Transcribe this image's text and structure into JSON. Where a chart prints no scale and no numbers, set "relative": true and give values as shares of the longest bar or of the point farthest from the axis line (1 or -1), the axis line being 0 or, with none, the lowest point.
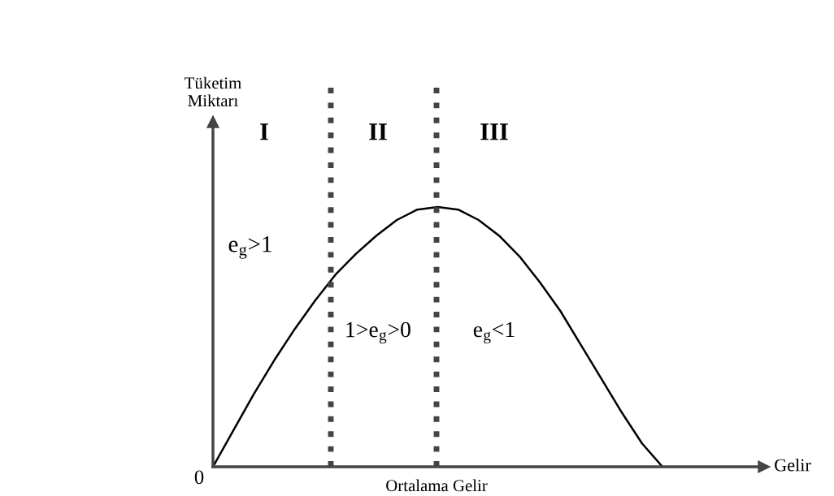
{
  "chart_data": {
    "type": "line",
    "relative": true,
    "categories": [
      null,
      null,
      null,
      null,
      null,
      null,
      null,
      null,
      null,
      null,
      null,
      null,
      null,
      null,
      null,
      null,
      null,
      null,
      null,
      null,
      null,
      null,
      null
    ],
    "series": [
      {
        "color": "#000000",
        "values": [
          0,
          0.14,
          0.28,
          0.41,
          0.53,
          0.64,
          0.74,
          0.82,
          0.89,
          0.95,
          0.99,
          1.0,
          0.99,
          0.95,
          0.89,
          0.81,
          0.71,
          0.6,
          0.47,
          0.34,
          0.21,
          0.09,
          0
        ]
      }
    ],
    "annotations": [
      "I",
      "II",
      "III",
      "e$_{g}$>1",
      "1>e$_{g}$>0",
      "e$_{g}$<1",
      "0",
      "Tüketim\nMiktarı",
      "Gelir",
      "Ortalama Gelir"
    ],
    "grid": false,
    "legend": false,
    "line_style": "solid",
    "marker": "none"
  }
}
